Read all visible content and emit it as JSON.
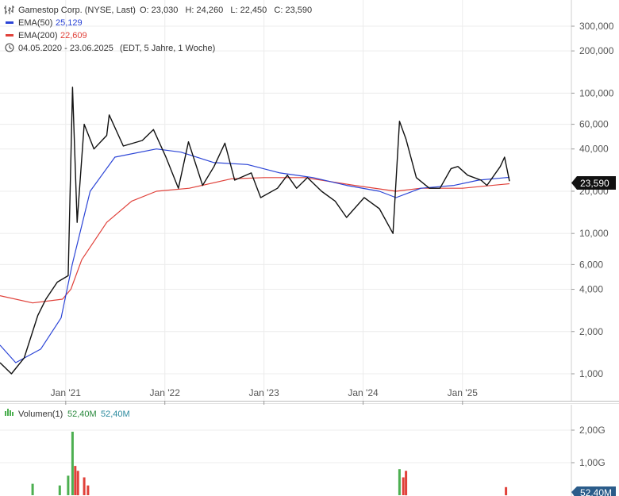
{
  "header": {
    "instrument": "Gamestop Corp. (NYSE, Last)",
    "ohlc": "O: 23,030   H: 24,260   L: 22,450   C: 23,590",
    "ema50_label": "EMA(50)",
    "ema50_value": "25,129",
    "ema200_label": "EMA(200)",
    "ema200_value": "22,609",
    "range_text": "04.05.2020 - 23.06.2025",
    "range_detail": "(EDT, 5 Jahre, 1 Woche)"
  },
  "volume_header": {
    "label": "Volumen(1)",
    "value_a": "52,40M",
    "value_b": "52,40M"
  },
  "colors": {
    "price": "#111111",
    "ema50": "#2b44d6",
    "ema200": "#e0413a",
    "vol_up": "#4caf50",
    "vol_down": "#e0413a",
    "badge_price": "#111111",
    "badge_volume": "#2b5c8a"
  },
  "chart_data": [
    {
      "type": "line",
      "scale": "log",
      "series": [
        {
          "name": "Gamestop Corp. (NYSE, Last)",
          "points": [
            [
              "2020-05-04",
              1.2
            ],
            [
              "2020-06-15",
              1.0
            ],
            [
              "2020-08-01",
              1.3
            ],
            [
              "2020-09-20",
              2.6
            ],
            [
              "2020-10-20",
              3.4
            ],
            [
              "2020-12-01",
              4.5
            ],
            [
              "2021-01-10",
              5.0
            ],
            [
              "2021-01-26",
              110
            ],
            [
              "2021-02-12",
              12
            ],
            [
              "2021-03-10",
              60
            ],
            [
              "2021-04-15",
              40
            ],
            [
              "2021-06-01",
              50
            ],
            [
              "2021-06-10",
              70
            ],
            [
              "2021-08-01",
              42
            ],
            [
              "2021-10-10",
              46
            ],
            [
              "2021-11-20",
              55
            ],
            [
              "2022-01-05",
              35
            ],
            [
              "2022-02-20",
              21
            ],
            [
              "2022-03-29",
              45
            ],
            [
              "2022-05-20",
              22
            ],
            [
              "2022-07-01",
              30
            ],
            [
              "2022-08-10",
              44
            ],
            [
              "2022-09-15",
              24
            ],
            [
              "2022-11-15",
              27
            ],
            [
              "2022-12-20",
              18
            ],
            [
              "2023-02-20",
              21
            ],
            [
              "2023-03-28",
              26
            ],
            [
              "2023-05-01",
              21
            ],
            [
              "2023-06-10",
              25
            ],
            [
              "2023-08-01",
              20
            ],
            [
              "2023-09-20",
              17
            ],
            [
              "2023-11-01",
              13
            ],
            [
              "2024-01-05",
              18
            ],
            [
              "2024-03-01",
              15
            ],
            [
              "2024-04-20",
              10
            ],
            [
              "2024-05-14",
              63
            ],
            [
              "2024-06-07",
              47
            ],
            [
              "2024-07-15",
              25
            ],
            [
              "2024-09-01",
              21
            ],
            [
              "2024-10-10",
              21
            ],
            [
              "2024-11-20",
              29
            ],
            [
              "2024-12-15",
              30
            ],
            [
              "2025-01-20",
              26
            ],
            [
              "2025-03-10",
              24
            ],
            [
              "2025-04-01",
              22
            ],
            [
              "2025-05-20",
              30
            ],
            [
              "2025-06-05",
              35
            ],
            [
              "2025-06-23",
              23.59
            ]
          ]
        },
        {
          "name": "EMA(50)",
          "points": [
            [
              "2020-05-04",
              1.6
            ],
            [
              "2020-07-01",
              1.2
            ],
            [
              "2020-10-01",
              1.5
            ],
            [
              "2020-12-15",
              2.5
            ],
            [
              "2021-01-25",
              6
            ],
            [
              "2021-04-01",
              20
            ],
            [
              "2021-07-01",
              35
            ],
            [
              "2021-12-01",
              40
            ],
            [
              "2022-03-01",
              38
            ],
            [
              "2022-07-01",
              32
            ],
            [
              "2022-11-01",
              31
            ],
            [
              "2023-03-01",
              27
            ],
            [
              "2023-07-01",
              25
            ],
            [
              "2023-11-01",
              22
            ],
            [
              "2024-03-01",
              20
            ],
            [
              "2024-05-01",
              18
            ],
            [
              "2024-08-01",
              21
            ],
            [
              "2024-12-01",
              22
            ],
            [
              "2025-03-01",
              24
            ],
            [
              "2025-06-23",
              25.129
            ]
          ]
        },
        {
          "name": "EMA(200)",
          "points": [
            [
              "2020-05-04",
              3.6
            ],
            [
              "2020-09-01",
              3.2
            ],
            [
              "2020-12-20",
              3.4
            ],
            [
              "2021-01-20",
              4
            ],
            [
              "2021-03-01",
              6.5
            ],
            [
              "2021-06-01",
              12
            ],
            [
              "2021-09-01",
              17
            ],
            [
              "2021-12-01",
              20
            ],
            [
              "2022-04-01",
              21
            ],
            [
              "2022-09-01",
              24.5
            ],
            [
              "2023-01-01",
              25
            ],
            [
              "2023-06-01",
              25
            ],
            [
              "2023-12-01",
              22
            ],
            [
              "2024-05-01",
              20
            ],
            [
              "2024-08-01",
              21
            ],
            [
              "2025-01-01",
              21
            ],
            [
              "2025-06-23",
              22.609
            ]
          ]
        }
      ],
      "x_ticks": [
        "Jan '21",
        "Jan '22",
        "Jan '23",
        "Jan '24",
        "Jan '25"
      ],
      "y_ticks": [
        "1,000",
        "2,000",
        "4,000",
        "6,000",
        "10,000",
        "20,000",
        "40,000",
        "60,000",
        "100,000",
        "200,000",
        "300,000"
      ],
      "last_price_badge": "23,590",
      "grid": true
    },
    {
      "type": "bar",
      "series": [
        {
          "name": "Volumen(1)",
          "points": [
            [
              "2021-01-26",
              1.95
            ],
            [
              "2021-01-10",
              0.6
            ],
            [
              "2021-02-05",
              0.9
            ],
            [
              "2021-02-15",
              0.75
            ],
            [
              "2021-03-10",
              0.55
            ],
            [
              "2021-03-24",
              0.3
            ],
            [
              "2024-05-14",
              0.8
            ],
            [
              "2024-06-07",
              0.75
            ],
            [
              "2024-05-28",
              0.55
            ],
            [
              "2020-09-01",
              0.35
            ],
            [
              "2020-12-10",
              0.3
            ],
            [
              "2025-06-10",
              0.25
            ]
          ]
        }
      ],
      "y_ticks": [
        "1,00G",
        "2,00G"
      ],
      "last_volume_badge": "52,40M",
      "grid": true
    }
  ]
}
